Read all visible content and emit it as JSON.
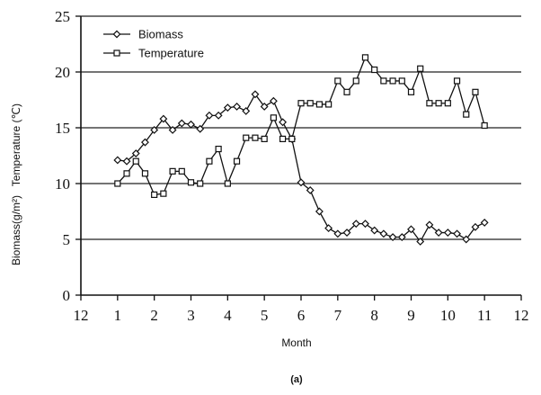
{
  "chart_data": {
    "type": "line",
    "title": "",
    "caption": "(a)",
    "xlabel": "Month",
    "ylabel": "Biomass(g/m²)   Temperature (℃)",
    "xlim": [
      0,
      12
    ],
    "ylim": [
      0,
      25
    ],
    "x_ticks": [
      0,
      1,
      2,
      3,
      4,
      5,
      6,
      7,
      8,
      9,
      10,
      11,
      12
    ],
    "x_tick_labels": [
      "12",
      "1",
      "2",
      "3",
      "4",
      "5",
      "6",
      "7",
      "8",
      "9",
      "10",
      "11",
      "12"
    ],
    "y_ticks": [
      0,
      5,
      10,
      15,
      20,
      25
    ],
    "y_tick_labels": [
      "0",
      "5",
      "10",
      "15",
      "20",
      "25"
    ],
    "grid": "horizontal",
    "legend_position": "top-left",
    "series": [
      {
        "name": "Biomass",
        "marker": "diamond",
        "x": [
          1.0,
          1.25,
          1.5,
          1.75,
          2.0,
          2.25,
          2.5,
          2.75,
          3.0,
          3.25,
          3.5,
          3.75,
          4.0,
          4.25,
          4.5,
          4.75,
          5.0,
          5.25,
          5.5,
          5.75,
          6.0,
          6.25,
          6.5,
          6.75,
          7.0,
          7.25,
          7.5,
          7.75,
          8.0,
          8.25,
          8.5,
          8.75,
          9.0,
          9.25,
          9.5,
          9.75,
          10.0,
          10.25,
          10.5,
          10.75,
          11.0
        ],
        "values": [
          12.1,
          12.0,
          12.7,
          13.7,
          14.8,
          15.8,
          14.8,
          15.4,
          15.3,
          14.9,
          16.1,
          16.1,
          16.8,
          16.9,
          16.5,
          18.0,
          16.9,
          17.4,
          15.5,
          14.0,
          10.1,
          9.4,
          7.5,
          6.0,
          5.5,
          5.6,
          6.4,
          6.4,
          5.8,
          5.5,
          5.2,
          5.2,
          5.9,
          4.8,
          6.3,
          5.6,
          5.6,
          5.5,
          5.0,
          6.1,
          6.5
        ]
      },
      {
        "name": "Temperature",
        "marker": "square",
        "x": [
          1.0,
          1.25,
          1.5,
          1.75,
          2.0,
          2.25,
          2.5,
          2.75,
          3.0,
          3.25,
          3.5,
          3.75,
          4.0,
          4.25,
          4.5,
          4.75,
          5.0,
          5.25,
          5.5,
          5.75,
          6.0,
          6.25,
          6.5,
          6.75,
          7.0,
          7.25,
          7.5,
          7.75,
          8.0,
          8.25,
          8.5,
          8.75,
          9.0,
          9.25,
          9.5,
          9.75,
          10.0,
          10.25,
          10.5,
          10.75,
          11.0
        ],
        "values": [
          10.0,
          10.9,
          12.0,
          10.9,
          9.0,
          9.1,
          11.1,
          11.1,
          10.1,
          10.0,
          12.0,
          13.1,
          10.0,
          12.0,
          14.1,
          14.1,
          14.0,
          15.9,
          14.0,
          14.0,
          17.2,
          17.2,
          17.1,
          17.1,
          19.2,
          18.2,
          19.2,
          21.3,
          20.2,
          19.2,
          19.2,
          19.2,
          18.2,
          20.3,
          17.2,
          17.2,
          17.2,
          19.2,
          16.2,
          18.2,
          15.2
        ]
      }
    ]
  }
}
